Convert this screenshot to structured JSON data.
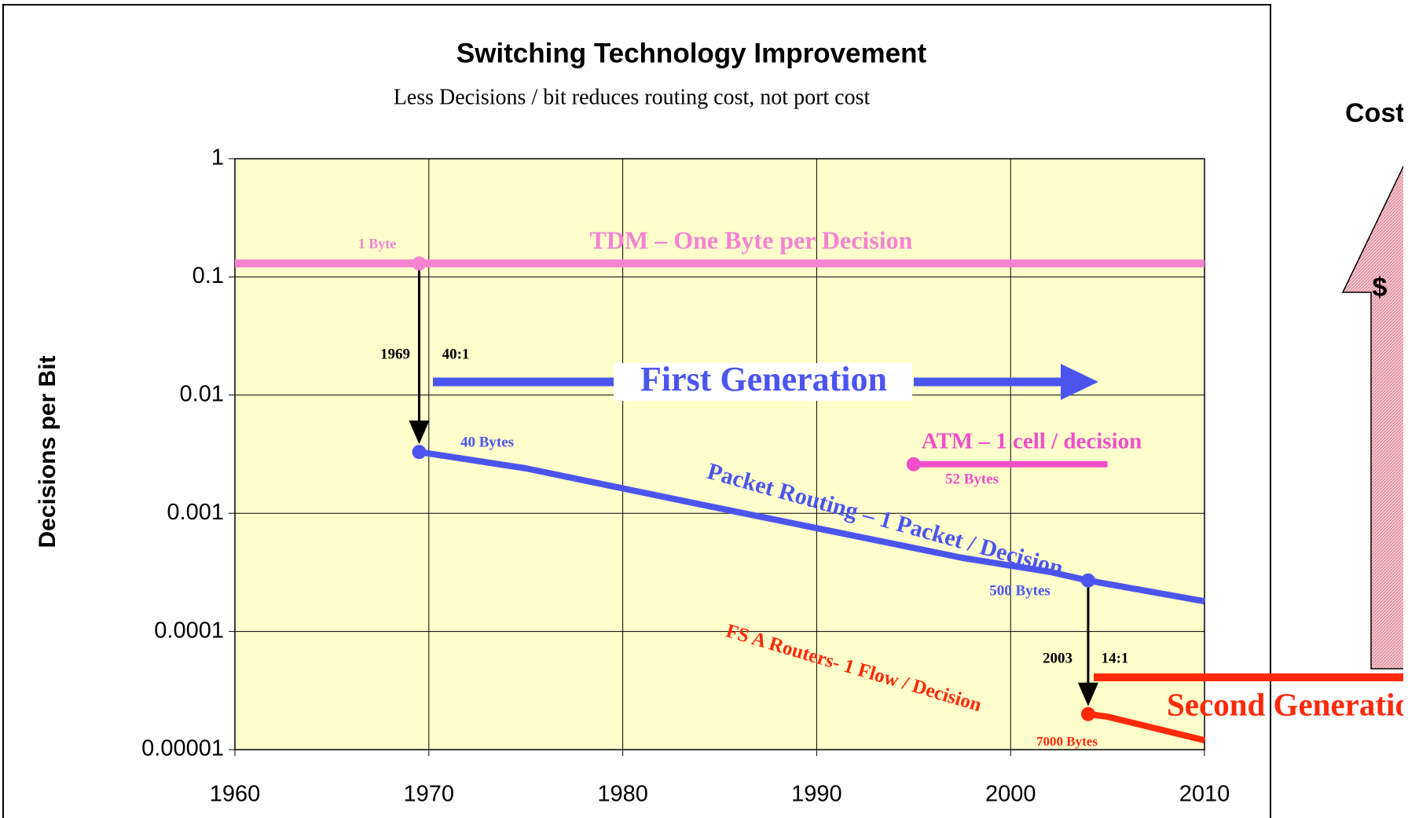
{
  "chart_data": {
    "type": "line",
    "title": "Switching Technology Improvement",
    "subtitle": "Less Decisions / bit reduces routing cost, not port cost",
    "y_label": "Decisions per Bit",
    "log_y": true,
    "grid": true,
    "xlim": [
      1960,
      2010
    ],
    "xticks": [
      1960,
      1970,
      1980,
      1990,
      2000,
      2010
    ],
    "ylim": [
      1e-05,
      1
    ],
    "yticks": [
      1,
      0.1,
      0.01,
      0.001,
      0.0001,
      1e-05
    ],
    "series": [
      {
        "name": "TDM – One Byte per Decision",
        "color": "#f583d2",
        "x": [
          1960,
          1969.5,
          2010
        ],
        "values": [
          0.13,
          0.13,
          0.13
        ]
      },
      {
        "name": "Packet Routing – 1 Packet / Decision",
        "color": "#4b55ee",
        "x": [
          1969.5,
          1975,
          1985,
          1997.5,
          2002,
          2004,
          2010
        ],
        "values": [
          0.0033,
          0.0024,
          0.0011,
          0.00042,
          0.00032,
          0.00027,
          0.00018
        ]
      },
      {
        "name": "ATM – 1 cell / decision",
        "color": "#f04fc8",
        "x": [
          1995,
          2005
        ],
        "values": [
          0.0026,
          0.0026
        ]
      },
      {
        "name": "FS A Routers- 1 Flow / Decision",
        "color": "#ff2a0a",
        "x": [
          2004,
          2005,
          2010
        ],
        "values": [
          2e-05,
          1.9e-05,
          1.2e-05
        ]
      }
    ],
    "annotations": {
      "tdm_size": "1 Byte",
      "first_year": "1969",
      "first_ratio": "40:1",
      "first_generation": "First Generation",
      "packet_start_size": "40 Bytes",
      "atm_size": "52 Bytes",
      "packet_end_size": "500 Bytes",
      "second_year": "2003",
      "second_ratio": "14:1",
      "flow_size": "7000 Bytes",
      "second_generation": "Second Generation",
      "side_title": "Cost",
      "side_symbol": "$"
    }
  }
}
